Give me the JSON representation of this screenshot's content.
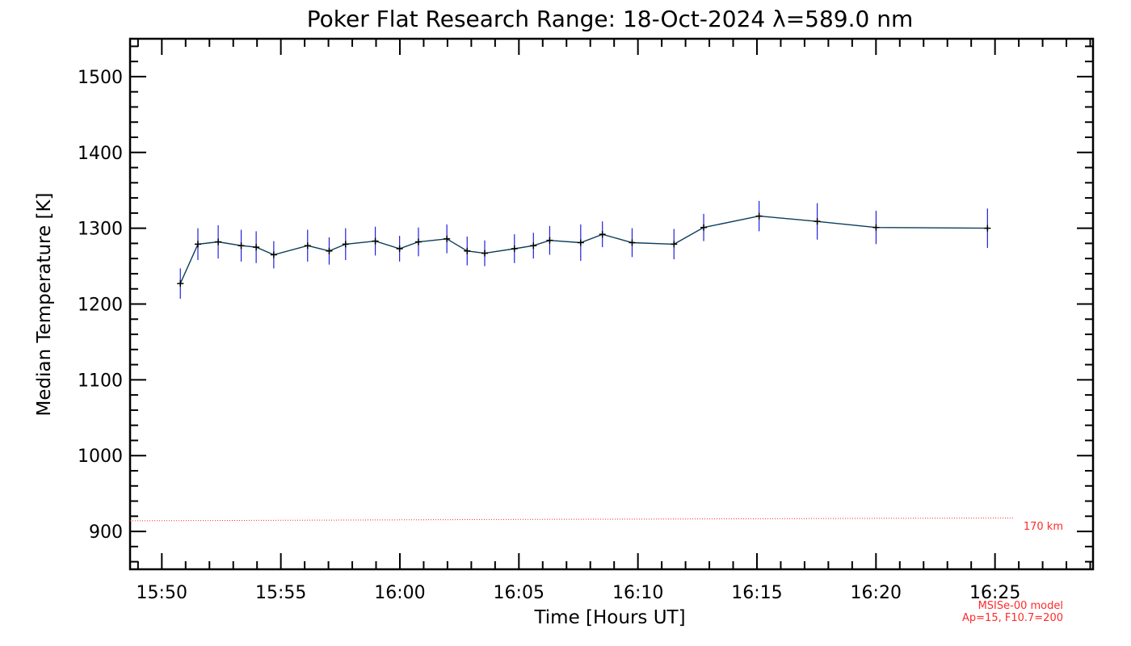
{
  "chart_data": {
    "type": "line",
    "title": "Poker Flat Research Range: 18-Oct-2024 λ=589.0 nm",
    "xlabel": "Time [Hours UT]",
    "ylabel": "Median Temperature [K]",
    "xlim": [
      15.8111,
      16.4853
    ],
    "ylim": [
      850,
      1550
    ],
    "yticks": [
      900,
      1000,
      1100,
      1200,
      1300,
      1400,
      1500
    ],
    "xticks": [
      {
        "value": 15.8333,
        "label": "15:50"
      },
      {
        "value": 15.9167,
        "label": "15:55"
      },
      {
        "value": 16.0,
        "label": "16:00"
      },
      {
        "value": 16.0833,
        "label": "16:05"
      },
      {
        "value": 16.1667,
        "label": "16:10"
      },
      {
        "value": 16.25,
        "label": "16:15"
      },
      {
        "value": 16.3333,
        "label": "16:20"
      },
      {
        "value": 16.4167,
        "label": "16:25"
      }
    ],
    "series": [
      {
        "name": "Median Temperature",
        "color": "#0b3d5c",
        "marker_color": "#000000",
        "error_color": "#2020dd",
        "x": [
          15.8463,
          15.8586,
          15.8728,
          15.8889,
          15.8994,
          15.9117,
          15.9354,
          15.9505,
          15.962,
          15.9828,
          15.9998,
          16.013,
          16.0329,
          16.0471,
          16.0594,
          16.0802,
          16.0935,
          16.1049,
          16.1266,
          16.1418,
          16.1626,
          16.1919,
          16.2127,
          16.2515,
          16.2922,
          16.3334,
          16.4114
        ],
        "y": [
          1227,
          1279,
          1282,
          1277,
          1275,
          1265,
          1277,
          1270,
          1279,
          1283,
          1273,
          1282,
          1286,
          1270,
          1267,
          1273,
          1277,
          1284,
          1281,
          1292,
          1281,
          1279,
          1301,
          1316,
          1309,
          1301,
          1300
        ],
        "err": [
          20,
          21,
          22,
          21,
          21,
          18,
          21,
          18,
          21,
          19,
          17,
          19,
          19,
          19,
          17,
          19,
          17,
          19,
          24,
          17,
          19,
          20,
          18,
          20,
          24,
          22,
          26
        ]
      },
      {
        "name": "MSISe-00 model 170 km",
        "color": "#ff2a2a",
        "style": "dotted",
        "x": [
          15.8111,
          15.9,
          16.0,
          16.1,
          16.2,
          16.3,
          16.4,
          16.43
        ],
        "y": [
          914,
          914.6,
          915.2,
          915.8,
          916.4,
          917.0,
          917.6,
          917.8
        ]
      }
    ],
    "annotations": {
      "model_altitude": "170 km",
      "model_name": "MSISe-00 model",
      "model_params": "Ap=15, F10.7=200"
    }
  }
}
